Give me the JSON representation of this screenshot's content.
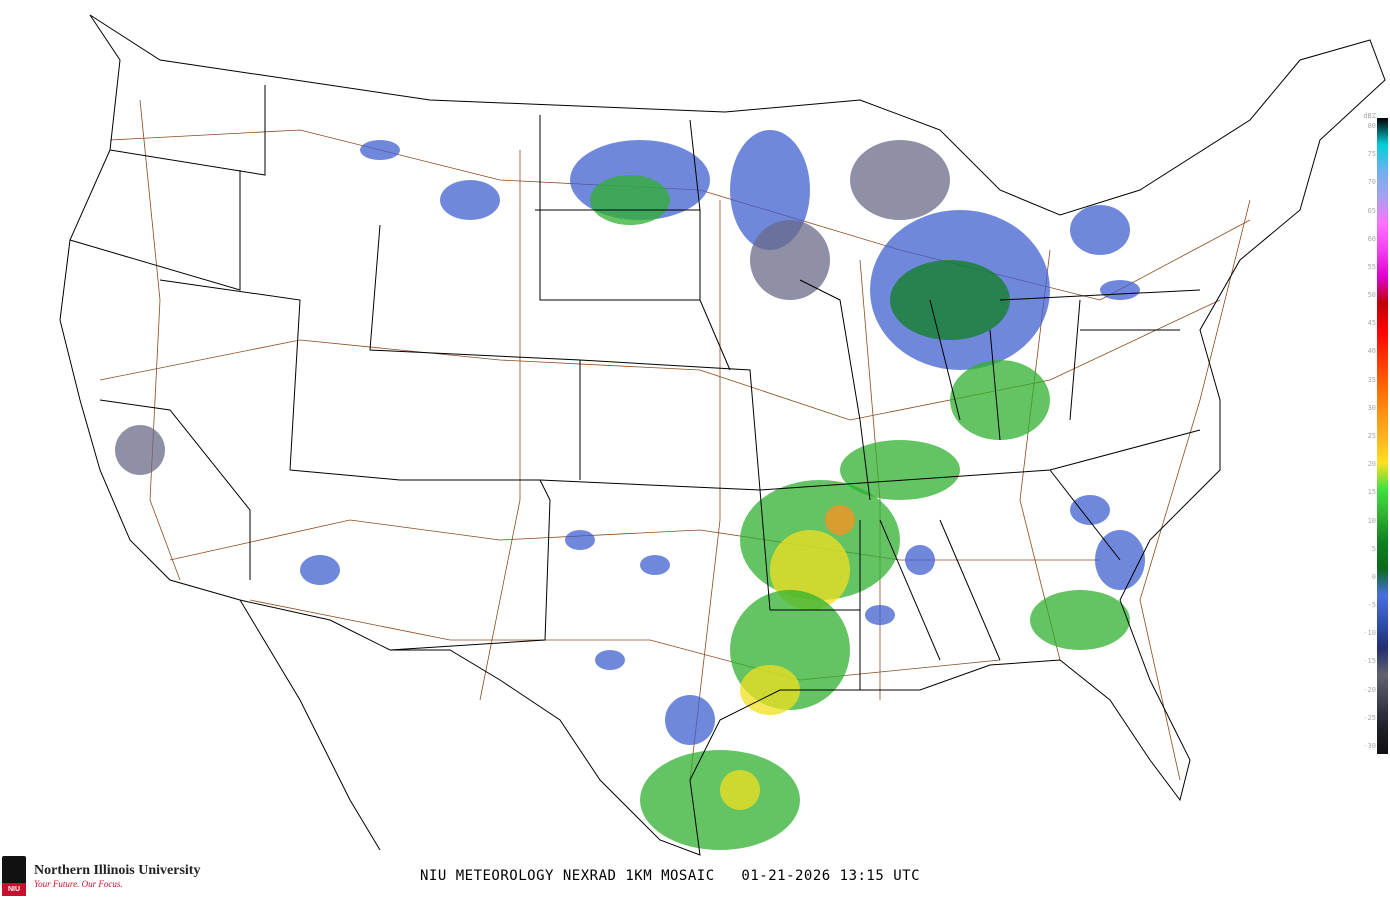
{
  "caption": "NIU METEOROLOGY NEXRAD 1KM MOSAIC   01-21-2026 13:15 UTC",
  "logo": {
    "name": "Northern Illinois University",
    "tagline": "Your Future. Our Focus.",
    "badge": "NIU"
  },
  "legend": {
    "unit": "dBZ",
    "labels": [
      "80",
      "75",
      "70",
      "65",
      "60",
      "55",
      "50",
      "45",
      "40",
      "35",
      "30",
      "25",
      "20",
      "15",
      "10",
      "5",
      "0",
      "-5",
      "-10",
      "-15",
      "-20",
      "-25",
      "-30"
    ],
    "colors": [
      "#000000",
      "#00d0d8",
      "#70b0f0",
      "#a8a0f0",
      "#ff70ff",
      "#f040f0",
      "#e000d0",
      "#c00000",
      "#ff0000",
      "#ff3000",
      "#ff6000",
      "#ff8c10",
      "#ffb020",
      "#ffe020",
      "#40e040",
      "#30b030",
      "#108020",
      "#0a6a18",
      "#4870e0",
      "#3050b0",
      "#203070",
      "#606070",
      "#404050",
      "#202028",
      "#101014"
    ]
  },
  "radar_colors": {
    "light": "#4060d0",
    "gray": "#6a6a88",
    "green": "#30b030",
    "dkgreen": "#108020",
    "yellow": "#f0e020",
    "orange": "#ff9020"
  },
  "map_colors": {
    "borders": "#000000",
    "roads": "#8b4a1c"
  }
}
